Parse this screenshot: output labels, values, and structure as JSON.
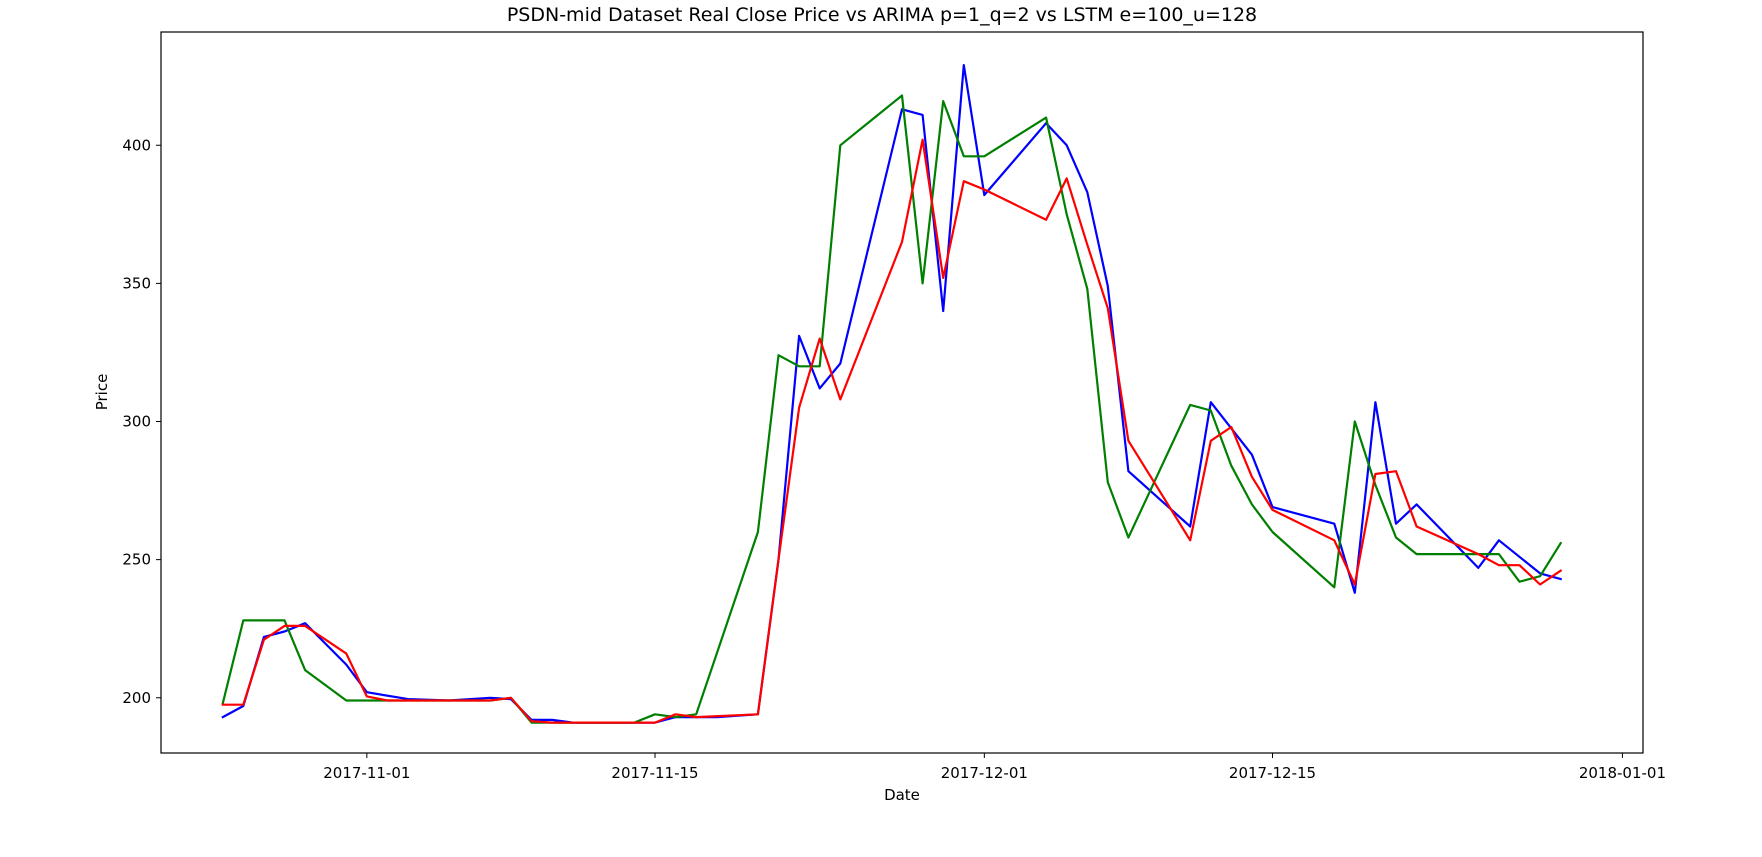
{
  "chart_data": {
    "type": "line",
    "title": "PSDN-mid Dataset Real Close Price vs ARIMA p=1_q=2 vs LSTM e=100_u=128",
    "xlabel": "Date",
    "ylabel": "Price",
    "xlim": [
      "2017-10-22",
      "2018-01-02"
    ],
    "ylim": [
      180,
      441
    ],
    "x_ticks": [
      "2017-11-01",
      "2017-11-15",
      "2017-12-01",
      "2017-12-15",
      "2018-01-01"
    ],
    "y_ticks": [
      200,
      250,
      300,
      350,
      400
    ],
    "grid": false,
    "legend": "none",
    "series": [
      {
        "color": "#0000ff",
        "points": [
          [
            "2017-10-25",
            193
          ],
          [
            "2017-10-26",
            197
          ],
          [
            "2017-10-27",
            222
          ],
          [
            "2017-10-28",
            224
          ],
          [
            "2017-10-29",
            227
          ],
          [
            "2017-10-31",
            212
          ],
          [
            "2017-11-01",
            202
          ],
          [
            "2017-11-03",
            199.5
          ],
          [
            "2017-11-05",
            199
          ],
          [
            "2017-11-07",
            200
          ],
          [
            "2017-11-08",
            199.5
          ],
          [
            "2017-11-09",
            192
          ],
          [
            "2017-11-10",
            192
          ],
          [
            "2017-11-11",
            191
          ],
          [
            "2017-11-13",
            191
          ],
          [
            "2017-11-15",
            191
          ],
          [
            "2017-11-16",
            193
          ],
          [
            "2017-11-17",
            193
          ],
          [
            "2017-11-18",
            193
          ],
          [
            "2017-11-20",
            194
          ],
          [
            "2017-11-21",
            250
          ],
          [
            "2017-11-22",
            331
          ],
          [
            "2017-11-23",
            312
          ],
          [
            "2017-11-24",
            321
          ],
          [
            "2017-11-27",
            413
          ],
          [
            "2017-11-28",
            411
          ],
          [
            "2017-11-29",
            340
          ],
          [
            "2017-11-30",
            429
          ],
          [
            "2017-12-01",
            382
          ],
          [
            "2017-12-04",
            408
          ],
          [
            "2017-12-05",
            400
          ],
          [
            "2017-12-06",
            383
          ],
          [
            "2017-12-07",
            349
          ],
          [
            "2017-12-08",
            282
          ],
          [
            "2017-12-11",
            262
          ],
          [
            "2017-12-12",
            307
          ],
          [
            "2017-12-14",
            288
          ],
          [
            "2017-12-15",
            269
          ],
          [
            "2017-12-18",
            263
          ],
          [
            "2017-12-19",
            238
          ],
          [
            "2017-12-20",
            307
          ],
          [
            "2017-12-21",
            263
          ],
          [
            "2017-12-22",
            270
          ],
          [
            "2017-12-25",
            247
          ],
          [
            "2017-12-26",
            257
          ],
          [
            "2017-12-28",
            245
          ],
          [
            "2017-12-29",
            243
          ]
        ]
      },
      {
        "color": "#008000",
        "points": [
          [
            "2017-10-25",
            198
          ],
          [
            "2017-10-26",
            228
          ],
          [
            "2017-10-27",
            228
          ],
          [
            "2017-10-28",
            228
          ],
          [
            "2017-10-29",
            210
          ],
          [
            "2017-10-31",
            199
          ],
          [
            "2017-11-01",
            199
          ],
          [
            "2017-11-03",
            199
          ],
          [
            "2017-11-05",
            199
          ],
          [
            "2017-11-07",
            199
          ],
          [
            "2017-11-08",
            200
          ],
          [
            "2017-11-09",
            191
          ],
          [
            "2017-11-10",
            191
          ],
          [
            "2017-11-11",
            191
          ],
          [
            "2017-11-13",
            191
          ],
          [
            "2017-11-14",
            191
          ],
          [
            "2017-11-15",
            194
          ],
          [
            "2017-11-16",
            193
          ],
          [
            "2017-11-17",
            194
          ],
          [
            "2017-11-20",
            260
          ],
          [
            "2017-11-21",
            324
          ],
          [
            "2017-11-22",
            320
          ],
          [
            "2017-11-23",
            320
          ],
          [
            "2017-11-24",
            400
          ],
          [
            "2017-11-27",
            418
          ],
          [
            "2017-11-28",
            350
          ],
          [
            "2017-11-29",
            416
          ],
          [
            "2017-11-30",
            396
          ],
          [
            "2017-12-01",
            396
          ],
          [
            "2017-12-04",
            410
          ],
          [
            "2017-12-05",
            375
          ],
          [
            "2017-12-06",
            348
          ],
          [
            "2017-12-07",
            278
          ],
          [
            "2017-12-08",
            258
          ],
          [
            "2017-12-11",
            306
          ],
          [
            "2017-12-12",
            304
          ],
          [
            "2017-12-13",
            284
          ],
          [
            "2017-12-14",
            270
          ],
          [
            "2017-12-15",
            260
          ],
          [
            "2017-12-18",
            240
          ],
          [
            "2017-12-19",
            300
          ],
          [
            "2017-12-20",
            277
          ],
          [
            "2017-12-21",
            258
          ],
          [
            "2017-12-22",
            252
          ],
          [
            "2017-12-25",
            252
          ],
          [
            "2017-12-26",
            252
          ],
          [
            "2017-12-27",
            242
          ],
          [
            "2017-12-28",
            244
          ],
          [
            "2017-12-29",
            256
          ]
        ]
      },
      {
        "color": "#ff0000",
        "points": [
          [
            "2017-10-25",
            197.5
          ],
          [
            "2017-10-26",
            197.5
          ],
          [
            "2017-10-27",
            221
          ],
          [
            "2017-10-28",
            226
          ],
          [
            "2017-10-29",
            226
          ],
          [
            "2017-10-31",
            216
          ],
          [
            "2017-11-01",
            200.5
          ],
          [
            "2017-11-02",
            199
          ],
          [
            "2017-11-03",
            199
          ],
          [
            "2017-11-05",
            199
          ],
          [
            "2017-11-07",
            199
          ],
          [
            "2017-11-08",
            200
          ],
          [
            "2017-11-09",
            191.5
          ],
          [
            "2017-11-10",
            191
          ],
          [
            "2017-11-11",
            191
          ],
          [
            "2017-11-13",
            191
          ],
          [
            "2017-11-15",
            191
          ],
          [
            "2017-11-16",
            194
          ],
          [
            "2017-11-17",
            193
          ],
          [
            "2017-11-20",
            194
          ],
          [
            "2017-11-21",
            250
          ],
          [
            "2017-11-22",
            305
          ],
          [
            "2017-11-23",
            330
          ],
          [
            "2017-11-24",
            308
          ],
          [
            "2017-11-27",
            365
          ],
          [
            "2017-11-28",
            402
          ],
          [
            "2017-11-29",
            352
          ],
          [
            "2017-11-30",
            387
          ],
          [
            "2017-12-01",
            384
          ],
          [
            "2017-12-04",
            373
          ],
          [
            "2017-12-05",
            388
          ],
          [
            "2017-12-06",
            364
          ],
          [
            "2017-12-07",
            341
          ],
          [
            "2017-12-08",
            293
          ],
          [
            "2017-12-11",
            257
          ],
          [
            "2017-12-12",
            293
          ],
          [
            "2017-12-13",
            298
          ],
          [
            "2017-12-14",
            280
          ],
          [
            "2017-12-15",
            268
          ],
          [
            "2017-12-18",
            257
          ],
          [
            "2017-12-19",
            241
          ],
          [
            "2017-12-20",
            281
          ],
          [
            "2017-12-21",
            282
          ],
          [
            "2017-12-22",
            262
          ],
          [
            "2017-12-25",
            252
          ],
          [
            "2017-12-26",
            248
          ],
          [
            "2017-12-27",
            248
          ],
          [
            "2017-12-28",
            241
          ],
          [
            "2017-12-29",
            246
          ]
        ]
      }
    ]
  }
}
